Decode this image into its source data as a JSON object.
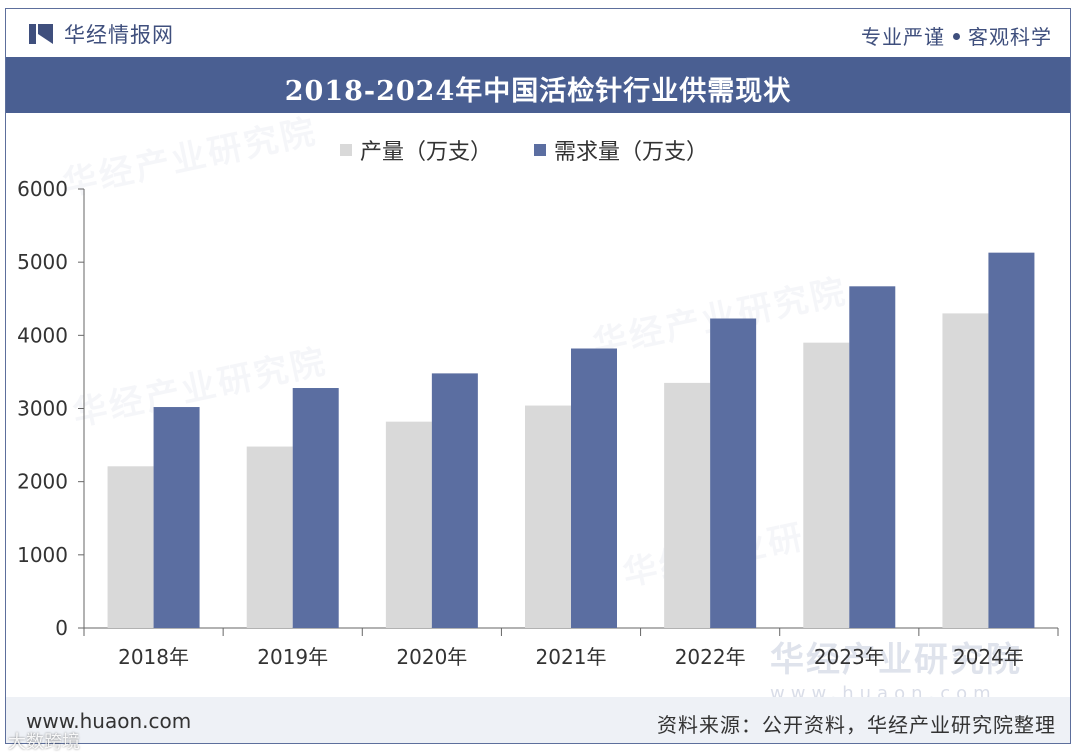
{
  "header": {
    "brand": "华经情报网",
    "slogan_left": "专业严谨",
    "slogan_right": "客观科学"
  },
  "chart_data": {
    "type": "bar",
    "title": "2018-2024年中国活检针行业供需现状",
    "categories": [
      "2018年",
      "2019年",
      "2020年",
      "2021年",
      "2022年",
      "2023年",
      "2024年"
    ],
    "series": [
      {
        "name": "产量（万支）",
        "color": "#d9d9d9",
        "values": [
          2210,
          2480,
          2820,
          3040,
          3350,
          3900,
          4300
        ]
      },
      {
        "name": "需求量（万支）",
        "color": "#5b6ea1",
        "values": [
          3020,
          3280,
          3480,
          3820,
          4230,
          4670,
          5130
        ]
      }
    ],
    "ylim": [
      0,
      6000
    ],
    "yticks": [
      0,
      1000,
      2000,
      3000,
      4000,
      5000,
      6000
    ],
    "xlabel": "",
    "ylabel": ""
  },
  "watermarks": {
    "text": "华经产业研究院",
    "site": "www.huaon.com"
  },
  "footer": {
    "site": "www.huaon.com",
    "source": "资料来源：公开资料，华经产业研究院整理"
  },
  "corner_mark": "大数跨境",
  "colors": {
    "brand": "#3f4f7d",
    "title_bg": "#4a5f92",
    "demand": "#5b6ea1",
    "production": "#d9d9d9"
  }
}
